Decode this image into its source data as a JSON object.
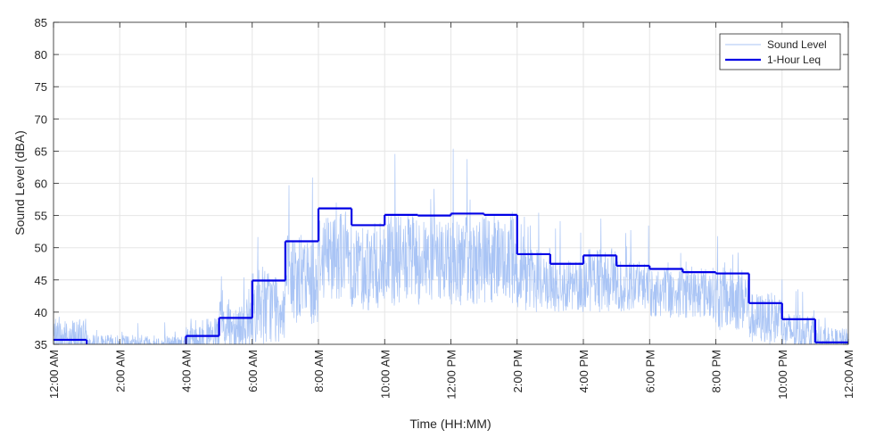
{
  "chart_data": {
    "type": "line",
    "title": "",
    "xlabel": "Time (HH:MM)",
    "ylabel": "Sound Level (dBA)",
    "ylim": [
      35,
      85
    ],
    "yticks": [
      35,
      40,
      45,
      50,
      55,
      60,
      65,
      70,
      75,
      80,
      85
    ],
    "xlim_hours": [
      0,
      24
    ],
    "xticks": [
      {
        "hour": 0,
        "label": "12:00 AM"
      },
      {
        "hour": 2,
        "label": "2:00 AM"
      },
      {
        "hour": 4,
        "label": "4:00 AM"
      },
      {
        "hour": 6,
        "label": "6:00 AM"
      },
      {
        "hour": 8,
        "label": "8:00 AM"
      },
      {
        "hour": 10,
        "label": "10:00 AM"
      },
      {
        "hour": 12,
        "label": "12:00 PM"
      },
      {
        "hour": 14,
        "label": "2:00 PM"
      },
      {
        "hour": 16,
        "label": "4:00 PM"
      },
      {
        "hour": 18,
        "label": "6:00 PM"
      },
      {
        "hour": 20,
        "label": "8:00 PM"
      },
      {
        "hour": 22,
        "label": "10:00 PM"
      },
      {
        "hour": 24,
        "label": "12:00 AM"
      }
    ],
    "grid": true,
    "legend_position": "top-right",
    "series": [
      {
        "name": "Sound Level",
        "color": "#a9c4f5",
        "style": "thin-line",
        "hourly_profile": [
          {
            "hour": 0,
            "mean": 36,
            "spread": 3
          },
          {
            "hour": 1,
            "mean": 35,
            "spread": 1.5
          },
          {
            "hour": 2,
            "mean": 35,
            "spread": 1.5
          },
          {
            "hour": 3,
            "mean": 35,
            "spread": 1.5
          },
          {
            "hour": 4,
            "mean": 36,
            "spread": 3
          },
          {
            "hour": 5,
            "mean": 38,
            "spread": 4
          },
          {
            "hour": 6,
            "mean": 41,
            "spread": 6
          },
          {
            "hour": 7,
            "mean": 45,
            "spread": 7
          },
          {
            "hour": 8,
            "mean": 49,
            "spread": 7
          },
          {
            "hour": 9,
            "mean": 47,
            "spread": 7
          },
          {
            "hour": 10,
            "mean": 48,
            "spread": 7
          },
          {
            "hour": 11,
            "mean": 48,
            "spread": 7
          },
          {
            "hour": 12,
            "mean": 48,
            "spread": 7
          },
          {
            "hour": 13,
            "mean": 48,
            "spread": 7
          },
          {
            "hour": 14,
            "mean": 45,
            "spread": 5
          },
          {
            "hour": 15,
            "mean": 44,
            "spread": 4
          },
          {
            "hour": 16,
            "mean": 45,
            "spread": 5
          },
          {
            "hour": 17,
            "mean": 44,
            "spread": 4
          },
          {
            "hour": 18,
            "mean": 43,
            "spread": 4
          },
          {
            "hour": 19,
            "mean": 43,
            "spread": 4
          },
          {
            "hour": 20,
            "mean": 42,
            "spread": 5
          },
          {
            "hour": 21,
            "mean": 39,
            "spread": 4
          },
          {
            "hour": 22,
            "mean": 37,
            "spread": 3
          },
          {
            "hour": 23,
            "mean": 35.5,
            "spread": 2
          }
        ]
      },
      {
        "name": "1-Hour Leq",
        "color": "#0000e6",
        "style": "step",
        "hours": [
          0,
          1,
          2,
          3,
          4,
          5,
          6,
          7,
          8,
          9,
          10,
          11,
          12,
          13,
          14,
          15,
          16,
          17,
          18,
          19,
          20,
          21,
          22,
          23
        ],
        "values": [
          35.7,
          34.5,
          34.5,
          34.5,
          36.3,
          39.1,
          44.9,
          51.0,
          56.1,
          53.5,
          55.1,
          55.0,
          55.3,
          55.1,
          49.0,
          47.5,
          48.8,
          47.2,
          46.7,
          46.2,
          46.0,
          41.4,
          38.9,
          35.3
        ]
      }
    ]
  }
}
